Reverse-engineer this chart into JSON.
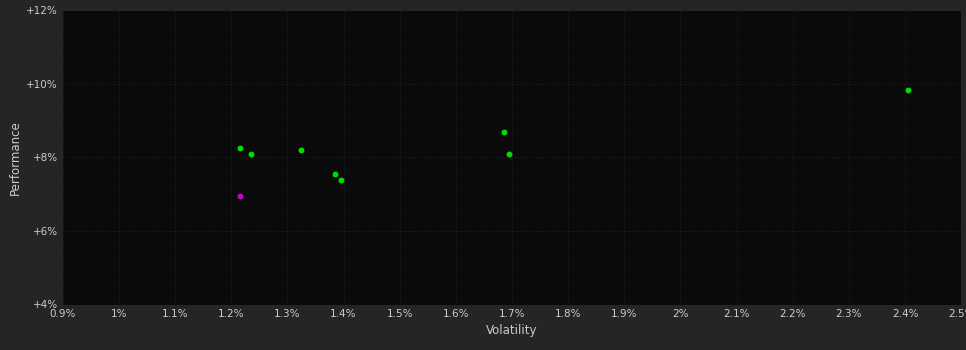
{
  "background_color": "#252525",
  "plot_bg_color": "#0a0a0a",
  "grid_color": "#333333",
  "xlabel": "Volatility",
  "ylabel": "Performance",
  "xlim": [
    0.009,
    0.025
  ],
  "ylim": [
    0.04,
    0.12
  ],
  "xtick_labels": [
    "0.9%",
    "1%",
    "1.1%",
    "1.2%",
    "1.3%",
    "1.4%",
    "1.5%",
    "1.6%",
    "1.7%",
    "1.8%",
    "1.9%",
    "2%",
    "2.1%",
    "2.2%",
    "2.3%",
    "2.4%",
    "2.5%"
  ],
  "xtick_vals": [
    0.009,
    0.01,
    0.011,
    0.012,
    0.013,
    0.014,
    0.015,
    0.016,
    0.017,
    0.018,
    0.019,
    0.02,
    0.021,
    0.022,
    0.023,
    0.024,
    0.025
  ],
  "ytick_labels": [
    "+4%",
    "+6%",
    "+8%",
    "+10%",
    "+12%"
  ],
  "ytick_vals": [
    0.04,
    0.06,
    0.08,
    0.1,
    0.12
  ],
  "green_points": [
    [
      0.01215,
      0.0825
    ],
    [
      0.01235,
      0.081
    ],
    [
      0.01325,
      0.082
    ],
    [
      0.01385,
      0.0755
    ],
    [
      0.01395,
      0.074
    ],
    [
      0.01685,
      0.087
    ],
    [
      0.01695,
      0.081
    ],
    [
      0.02405,
      0.0985
    ]
  ],
  "magenta_points": [
    [
      0.01215,
      0.0695
    ]
  ],
  "dot_size": 18,
  "grid_linewidth": 0.4,
  "text_color": "#cccccc",
  "tick_fontsize": 7.5,
  "axis_label_fontsize": 8.5
}
